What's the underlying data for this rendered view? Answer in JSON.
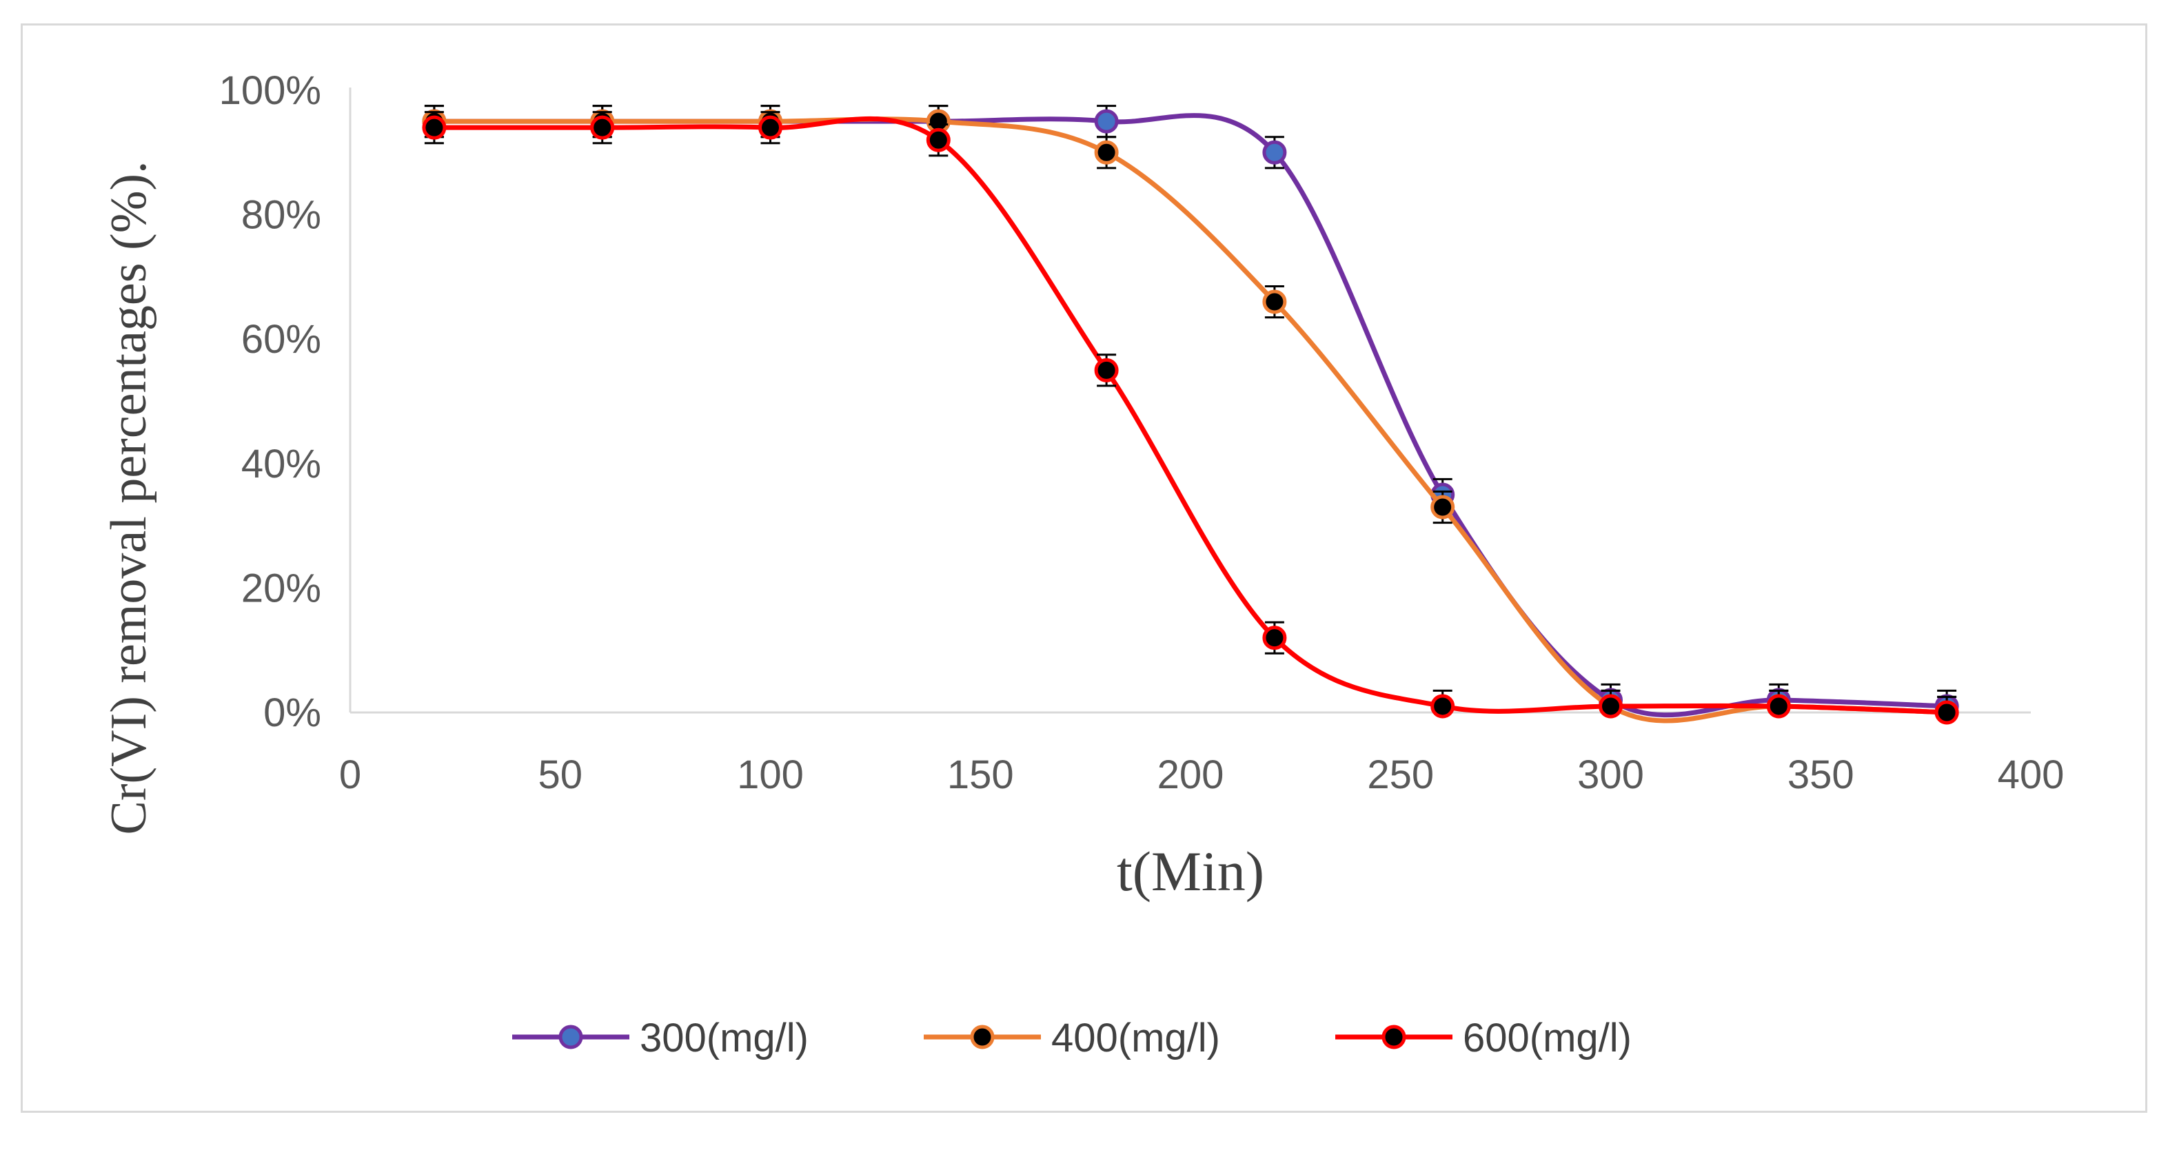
{
  "chart_data": {
    "type": "line",
    "title": "",
    "xlabel": "t(Min)",
    "ylabel": "Cr(VI) removal percentages (%).",
    "xlim": [
      0,
      400
    ],
    "ylim": [
      0,
      100
    ],
    "x_ticks": [
      0,
      50,
      100,
      150,
      200,
      250,
      300,
      350,
      400
    ],
    "y_ticks": [
      0,
      20,
      40,
      60,
      80,
      100
    ],
    "y_tick_labels": [
      "0%",
      "20%",
      "40%",
      "60%",
      "80%",
      "100%"
    ],
    "x_tick_labels": [
      "0",
      "50",
      "100",
      "150",
      "200",
      "250",
      "300",
      "350",
      "400"
    ],
    "grid": false,
    "error_bars": true,
    "error_value": 2.5,
    "legend_position": "bottom",
    "series": [
      {
        "name": "300(mg/l)",
        "line_color": "#7030a0",
        "marker_fill": "#4472c4",
        "marker_edge": "#7030a0",
        "x": [
          20,
          60,
          100,
          140,
          180,
          220,
          260,
          300,
          340,
          380
        ],
        "values": [
          95,
          95,
          95,
          95,
          95,
          90,
          35,
          2,
          2,
          1
        ]
      },
      {
        "name": "400(mg/l)",
        "line_color": "#ed7d31",
        "marker_fill": "#000000",
        "marker_edge": "#ed7d31",
        "x": [
          20,
          60,
          100,
          140,
          180,
          220,
          260,
          300,
          340,
          380
        ],
        "values": [
          95,
          95,
          95,
          95,
          90,
          66,
          33,
          1,
          1,
          0
        ]
      },
      {
        "name": "600(mg/l)",
        "line_color": "#ff0000",
        "marker_fill": "#000000",
        "marker_edge": "#ff0000",
        "x": [
          20,
          60,
          100,
          140,
          180,
          220,
          260,
          300,
          340,
          380
        ],
        "values": [
          94,
          94,
          94,
          92,
          55,
          12,
          1,
          1,
          1,
          0
        ]
      }
    ]
  }
}
